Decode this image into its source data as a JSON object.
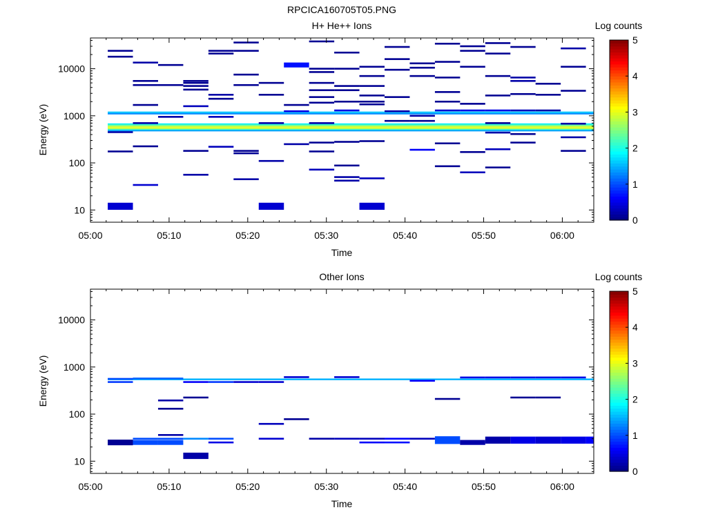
{
  "figure_title": "RPCICA160705T05.PNG",
  "colors": {
    "colormap": [
      "#00007f",
      "#0000ff",
      "#007fff",
      "#00ffff",
      "#7fff7f",
      "#ffff00",
      "#ff7f00",
      "#ff0000",
      "#7f0000"
    ]
  },
  "chart_data": [
    {
      "type": "heatmap",
      "title": "H+ He++ Ions",
      "xlabel": "Time",
      "ylabel": "Energy (eV)",
      "x_ticks": [
        "05:00",
        "05:10",
        "05:20",
        "05:30",
        "05:40",
        "05:50",
        "06:00"
      ],
      "y_ticks": [
        "10",
        "100",
        "1000",
        "10000"
      ],
      "xlim_minutes": [
        0,
        64
      ],
      "ylim": [
        5.5,
        45000
      ],
      "yscale": "log",
      "colorbar": {
        "label": "Log counts",
        "ticks": [
          "0",
          "1",
          "2",
          "3",
          "4",
          "5"
        ],
        "range": [
          0,
          5
        ]
      },
      "time_bins": [
        2.2,
        5.4,
        8.6,
        11.8,
        15.0,
        18.2,
        21.4,
        24.6,
        27.8,
        31.0,
        34.2,
        37.4,
        40.6,
        43.8,
        47.0,
        50.2,
        53.4,
        56.6,
        59.8,
        63.0
      ],
      "bands": [
        {
          "bins": [
            0,
            19
          ],
          "e": [
            1070,
            1150
          ],
          "v": 1.3
        },
        {
          "bins": [
            0,
            19
          ],
          "e": [
            1150,
            1230
          ],
          "v": 1.6
        },
        {
          "bins": [
            0,
            19
          ],
          "e": [
            650,
            690
          ],
          "v": 1.8
        },
        {
          "bins": [
            0,
            19
          ],
          "e": [
            605,
            650
          ],
          "v": 2.4
        },
        {
          "bins": [
            0,
            19
          ],
          "e": [
            565,
            605
          ],
          "v": 2.9
        },
        {
          "bins": [
            0,
            19
          ],
          "e": [
            530,
            565
          ],
          "v": 3.0
        },
        {
          "bins": [
            0,
            19
          ],
          "e": [
            500,
            530
          ],
          "v": 2.2
        },
        {
          "bins": [
            0,
            19
          ],
          "e": [
            470,
            500
          ],
          "v": 1.4
        }
      ],
      "cells": [
        {
          "bin": 0,
          "e": 24000,
          "v": 0.1
        },
        {
          "bin": 0,
          "e": 18000,
          "v": 0.1
        },
        {
          "bin": 0,
          "e": 450,
          "v": 0.2
        },
        {
          "bin": 0,
          "e": 175,
          "v": 0.1
        },
        {
          "bin": 0,
          "e": 12,
          "v": 0.4,
          "h": 2
        },
        {
          "bin": 1,
          "e": 13500,
          "v": 0.2
        },
        {
          "bin": 1,
          "e": 5500,
          "v": 0.1
        },
        {
          "bin": 1,
          "e": 4500,
          "v": 0.1
        },
        {
          "bin": 1,
          "e": 1700,
          "v": 0.1
        },
        {
          "bin": 1,
          "e": 700,
          "v": 0.2
        },
        {
          "bin": 1,
          "e": 225,
          "v": 0.1
        },
        {
          "bin": 1,
          "e": 34,
          "v": 0.4
        },
        {
          "bin": 2,
          "e": 12000,
          "v": 0.1
        },
        {
          "bin": 2,
          "e": 4500,
          "v": 0.1
        },
        {
          "bin": 2,
          "e": 950,
          "v": 0.2
        },
        {
          "bin": 3,
          "e": 5500,
          "v": 0.1
        },
        {
          "bin": 3,
          "e": 5000,
          "v": 0.1
        },
        {
          "bin": 3,
          "e": 4300,
          "v": 0.1
        },
        {
          "bin": 3,
          "e": 3600,
          "v": 0.1
        },
        {
          "bin": 3,
          "e": 1600,
          "v": 0.3
        },
        {
          "bin": 3,
          "e": 180,
          "v": 0.1
        },
        {
          "bin": 3,
          "e": 56,
          "v": 0.2
        },
        {
          "bin": 4,
          "e": 24000,
          "v": 0.1
        },
        {
          "bin": 4,
          "e": 21000,
          "v": 0.1
        },
        {
          "bin": 4,
          "e": 2800,
          "v": 0.2
        },
        {
          "bin": 4,
          "e": 2300,
          "v": 0.1
        },
        {
          "bin": 4,
          "e": 950,
          "v": 0.3
        },
        {
          "bin": 4,
          "e": 220,
          "v": 0.3
        },
        {
          "bin": 5,
          "e": 36000,
          "v": 0.1
        },
        {
          "bin": 5,
          "e": 24000,
          "v": 0.1
        },
        {
          "bin": 5,
          "e": 7500,
          "v": 0.1
        },
        {
          "bin": 5,
          "e": 4500,
          "v": 0.1
        },
        {
          "bin": 5,
          "e": 180,
          "v": 0.1
        },
        {
          "bin": 5,
          "e": 160,
          "v": 0.1
        },
        {
          "bin": 5,
          "e": 45,
          "v": 0.2
        },
        {
          "bin": 6,
          "e": 5000,
          "v": 0.1
        },
        {
          "bin": 6,
          "e": 2800,
          "v": 0.1
        },
        {
          "bin": 6,
          "e": 700,
          "v": 0.2
        },
        {
          "bin": 6,
          "e": 110,
          "v": 0.2
        },
        {
          "bin": 6,
          "e": 12,
          "v": 0.4,
          "h": 2
        },
        {
          "bin": 7,
          "e": 12000,
          "v": 0.7,
          "h": 1.4
        },
        {
          "bin": 7,
          "e": 1700,
          "v": 0.1
        },
        {
          "bin": 7,
          "e": 1250,
          "v": 0.5
        },
        {
          "bin": 7,
          "e": 250,
          "v": 0.2
        },
        {
          "bin": 8,
          "e": 38000,
          "v": 0.1
        },
        {
          "bin": 8,
          "e": 10000,
          "v": 0.1
        },
        {
          "bin": 8,
          "e": 8500,
          "v": 0.1
        },
        {
          "bin": 8,
          "e": 5000,
          "v": 0.1
        },
        {
          "bin": 8,
          "e": 3500,
          "v": 0.1
        },
        {
          "bin": 8,
          "e": 2500,
          "v": 0.1
        },
        {
          "bin": 8,
          "e": 1900,
          "v": 0.1
        },
        {
          "bin": 8,
          "e": 700,
          "v": 0.2
        },
        {
          "bin": 8,
          "e": 270,
          "v": 0.1
        },
        {
          "bin": 8,
          "e": 175,
          "v": 0.1
        },
        {
          "bin": 8,
          "e": 72,
          "v": 0.3
        },
        {
          "bin": 9,
          "e": 22000,
          "v": 0.1
        },
        {
          "bin": 9,
          "e": 10000,
          "v": 0.1
        },
        {
          "bin": 9,
          "e": 4300,
          "v": 0.1
        },
        {
          "bin": 9,
          "e": 3500,
          "v": 0.1
        },
        {
          "bin": 9,
          "e": 2000,
          "v": 0.1
        },
        {
          "bin": 9,
          "e": 1300,
          "v": 0.5
        },
        {
          "bin": 9,
          "e": 280,
          "v": 0.1
        },
        {
          "bin": 9,
          "e": 88,
          "v": 0.1
        },
        {
          "bin": 9,
          "e": 50,
          "v": 0.2
        },
        {
          "bin": 9,
          "e": 42,
          "v": 0.2
        },
        {
          "bin": 10,
          "e": 11000,
          "v": 0.1
        },
        {
          "bin": 10,
          "e": 7000,
          "v": 0.1
        },
        {
          "bin": 10,
          "e": 4300,
          "v": 0.1
        },
        {
          "bin": 10,
          "e": 2700,
          "v": 0.1
        },
        {
          "bin": 10,
          "e": 2000,
          "v": 0.1
        },
        {
          "bin": 10,
          "e": 1750,
          "v": 0.1
        },
        {
          "bin": 10,
          "e": 290,
          "v": 0.1
        },
        {
          "bin": 10,
          "e": 47,
          "v": 0.3
        },
        {
          "bin": 10,
          "e": 12,
          "v": 0.4,
          "h": 2
        },
        {
          "bin": 11,
          "e": 29000,
          "v": 0.1
        },
        {
          "bin": 11,
          "e": 16000,
          "v": 0.1
        },
        {
          "bin": 11,
          "e": 9500,
          "v": 0.1
        },
        {
          "bin": 11,
          "e": 2500,
          "v": 0.1
        },
        {
          "bin": 11,
          "e": 1250,
          "v": 0.2
        },
        {
          "bin": 11,
          "e": 780,
          "v": 0.1
        },
        {
          "bin": 12,
          "e": 13000,
          "v": 0.1
        },
        {
          "bin": 12,
          "e": 10500,
          "v": 0.1
        },
        {
          "bin": 12,
          "e": 7000,
          "v": 0.1
        },
        {
          "bin": 12,
          "e": 1000,
          "v": 0.2
        },
        {
          "bin": 12,
          "e": 780,
          "v": 0.1
        },
        {
          "bin": 12,
          "e": 190,
          "v": 0.6
        },
        {
          "bin": 13,
          "e": 34000,
          "v": 0.1
        },
        {
          "bin": 13,
          "e": 14000,
          "v": 0.1
        },
        {
          "bin": 13,
          "e": 6500,
          "v": 0.1
        },
        {
          "bin": 13,
          "e": 3200,
          "v": 0.1
        },
        {
          "bin": 13,
          "e": 2000,
          "v": 0.1
        },
        {
          "bin": 13,
          "e": 1300,
          "v": 0.4
        },
        {
          "bin": 13,
          "e": 260,
          "v": 0.1
        },
        {
          "bin": 13,
          "e": 85,
          "v": 0.1
        },
        {
          "bin": 14,
          "e": 30000,
          "v": 0.1
        },
        {
          "bin": 14,
          "e": 24000,
          "v": 0.1
        },
        {
          "bin": 14,
          "e": 11000,
          "v": 0.1
        },
        {
          "bin": 14,
          "e": 1800,
          "v": 0.1
        },
        {
          "bin": 14,
          "e": 1300,
          "v": 0.5
        },
        {
          "bin": 14,
          "e": 170,
          "v": 0.1
        },
        {
          "bin": 14,
          "e": 63,
          "v": 0.3
        },
        {
          "bin": 15,
          "e": 35000,
          "v": 0.1
        },
        {
          "bin": 15,
          "e": 21000,
          "v": 0.1
        },
        {
          "bin": 15,
          "e": 7000,
          "v": 0.1
        },
        {
          "bin": 15,
          "e": 2700,
          "v": 0.1
        },
        {
          "bin": 15,
          "e": 1300,
          "v": 0.5
        },
        {
          "bin": 15,
          "e": 700,
          "v": 0.1
        },
        {
          "bin": 15,
          "e": 440,
          "v": 0.2
        },
        {
          "bin": 15,
          "e": 195,
          "v": 0.3
        },
        {
          "bin": 15,
          "e": 80,
          "v": 0.1
        },
        {
          "bin": 16,
          "e": 29000,
          "v": 0.1
        },
        {
          "bin": 16,
          "e": 6500,
          "v": 0.2
        },
        {
          "bin": 16,
          "e": 5500,
          "v": 0.2
        },
        {
          "bin": 16,
          "e": 2900,
          "v": 0.1
        },
        {
          "bin": 16,
          "e": 1300,
          "v": 0.3
        },
        {
          "bin": 16,
          "e": 410,
          "v": 0.1
        },
        {
          "bin": 16,
          "e": 270,
          "v": 0.1
        },
        {
          "bin": 17,
          "e": 4800,
          "v": 0.1
        },
        {
          "bin": 17,
          "e": 2800,
          "v": 0.1
        },
        {
          "bin": 17,
          "e": 1300,
          "v": 0.2
        },
        {
          "bin": 18,
          "e": 27000,
          "v": 0.2
        },
        {
          "bin": 18,
          "e": 11000,
          "v": 0.1
        },
        {
          "bin": 18,
          "e": 3400,
          "v": 0.1
        },
        {
          "bin": 18,
          "e": 680,
          "v": 0.2
        },
        {
          "bin": 18,
          "e": 350,
          "v": 0.2
        },
        {
          "bin": 18,
          "e": 180,
          "v": 0.1
        }
      ]
    },
    {
      "type": "heatmap",
      "title": "Other Ions",
      "xlabel": "Time",
      "ylabel": "Energy (eV)",
      "x_ticks": [
        "05:00",
        "05:10",
        "05:20",
        "05:30",
        "05:40",
        "05:50",
        "06:00"
      ],
      "y_ticks": [
        "10",
        "100",
        "1000",
        "10000"
      ],
      "xlim_minutes": [
        0,
        64
      ],
      "ylim": [
        5.5,
        45000
      ],
      "yscale": "log",
      "colorbar": {
        "label": "Log counts",
        "ticks": [
          "0",
          "1",
          "2",
          "3",
          "4",
          "5"
        ],
        "range": [
          0,
          5
        ]
      },
      "time_bins": [
        2.2,
        5.4,
        8.6,
        11.8,
        15.0,
        18.2,
        21.4,
        24.6,
        27.8,
        31.0,
        34.2,
        37.4,
        40.6,
        43.8,
        47.0,
        50.2,
        53.4,
        56.6,
        59.8,
        63.0
      ],
      "bands": [
        {
          "bins": [
            0,
            19
          ],
          "e": [
            525,
            570
          ],
          "v": 1.5
        }
      ],
      "cells": [
        {
          "bin": 0,
          "e": 480,
          "v": 0.9
        },
        {
          "bin": 0,
          "e": 560,
          "v": 1.0
        },
        {
          "bin": 1,
          "e": 570,
          "v": 1.1
        },
        {
          "bin": 2,
          "e": 570,
          "v": 1.1
        },
        {
          "bin": 3,
          "e": 480,
          "v": 0.6
        },
        {
          "bin": 4,
          "e": 480,
          "v": 0.9
        },
        {
          "bin": 5,
          "e": 480,
          "v": 0.4
        },
        {
          "bin": 6,
          "e": 480,
          "v": 0.4
        },
        {
          "bin": 7,
          "e": 610,
          "v": 0.4
        },
        {
          "bin": 9,
          "e": 610,
          "v": 0.4
        },
        {
          "bin": 12,
          "e": 510,
          "v": 0.6
        },
        {
          "bin": 14,
          "e": 600,
          "v": 0.5
        },
        {
          "bin": 15,
          "e": 600,
          "v": 0.5
        },
        {
          "bin": 16,
          "e": 600,
          "v": 0.5
        },
        {
          "bin": 17,
          "e": 600,
          "v": 0.5
        },
        {
          "bin": 18,
          "e": 600,
          "v": 0.5
        },
        {
          "bin": 2,
          "e": 195,
          "v": 0.2
        },
        {
          "bin": 2,
          "e": 130,
          "v": 0.1
        },
        {
          "bin": 3,
          "e": 225,
          "v": 0.1
        },
        {
          "bin": 6,
          "e": 62,
          "v": 0.3
        },
        {
          "bin": 7,
          "e": 78,
          "v": 0.1
        },
        {
          "bin": 13,
          "e": 210,
          "v": 0.1
        },
        {
          "bin": 16,
          "e": 225,
          "v": 0.1
        },
        {
          "bin": 17,
          "e": 225,
          "v": 0.1
        },
        {
          "bin": 0,
          "e": 25,
          "v": 0.1,
          "h": 1.6
        },
        {
          "bin": 1,
          "e": 30,
          "v": 1.0
        },
        {
          "bin": 1,
          "e": 25,
          "v": 1.0,
          "h": 1.4
        },
        {
          "bin": 2,
          "e": 36,
          "v": 0.2
        },
        {
          "bin": 2,
          "e": 30,
          "v": 1.0
        },
        {
          "bin": 2,
          "e": 25,
          "v": 1.0,
          "h": 1.4
        },
        {
          "bin": 3,
          "e": 30,
          "v": 1.3
        },
        {
          "bin": 3,
          "e": 13,
          "v": 0.2,
          "h": 1.8
        },
        {
          "bin": 4,
          "e": 30,
          "v": 1.0
        },
        {
          "bin": 4,
          "e": 25,
          "v": 0.5
        },
        {
          "bin": 6,
          "e": 30,
          "v": 0.4
        },
        {
          "bin": 8,
          "e": 30,
          "v": 0.2
        },
        {
          "bin": 9,
          "e": 30,
          "v": 0.3
        },
        {
          "bin": 10,
          "e": 30,
          "v": 0.3
        },
        {
          "bin": 10,
          "e": 25,
          "v": 0.6
        },
        {
          "bin": 11,
          "e": 30,
          "v": 0.6
        },
        {
          "bin": 11,
          "e": 25,
          "v": 0.7
        },
        {
          "bin": 12,
          "e": 30,
          "v": 0.3
        },
        {
          "bin": 13,
          "e": 28,
          "v": 1.0,
          "h": 2.2
        },
        {
          "bin": 14,
          "e": 25,
          "v": 0.2,
          "h": 1.4
        },
        {
          "bin": 15,
          "e": 28,
          "v": 0.2,
          "h": 2
        },
        {
          "bin": 16,
          "e": 28,
          "v": 0.5,
          "h": 2
        },
        {
          "bin": 17,
          "e": 28,
          "v": 0.4,
          "h": 2
        },
        {
          "bin": 18,
          "e": 28,
          "v": 0.5,
          "h": 2
        },
        {
          "bin": 19,
          "e": 28,
          "v": 0.6,
          "h": 2
        }
      ]
    }
  ]
}
